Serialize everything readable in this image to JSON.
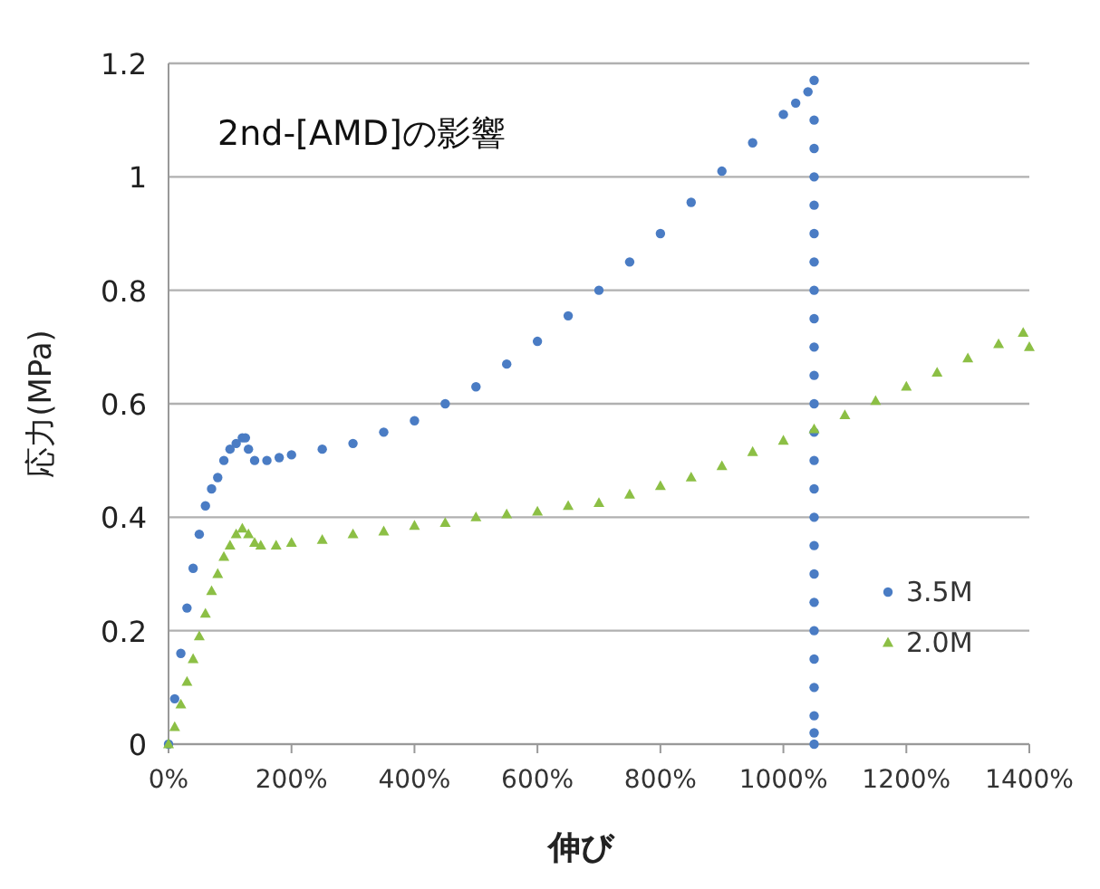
{
  "chart_data": {
    "type": "scatter",
    "title": "2nd-[AMD]の影響",
    "xlabel": "伸び",
    "ylabel": "応力(MPa)",
    "xlim": [
      0,
      1400
    ],
    "ylim": [
      0,
      1.2
    ],
    "xticks": [
      {
        "value": 0,
        "label": "0%"
      },
      {
        "value": 200,
        "label": "200%"
      },
      {
        "value": 400,
        "label": "400%"
      },
      {
        "value": 600,
        "label": "600%"
      },
      {
        "value": 800,
        "label": "800%"
      },
      {
        "value": 1000,
        "label": "1000%"
      },
      {
        "value": 1200,
        "label": "1200%"
      },
      {
        "value": 1400,
        "label": "1400%"
      }
    ],
    "yticks": [
      0,
      0.2,
      0.4,
      0.6,
      0.8,
      1,
      1.2
    ],
    "grid": "y",
    "legend": "right",
    "series": [
      {
        "name": "3.5M",
        "color": "#4a7cc4",
        "marker": "circle",
        "x": [
          0,
          10,
          20,
          30,
          40,
          50,
          60,
          70,
          80,
          90,
          100,
          110,
          120,
          125,
          130,
          140,
          160,
          180,
          200,
          250,
          300,
          350,
          400,
          450,
          500,
          550,
          600,
          650,
          700,
          750,
          800,
          850,
          900,
          950,
          1000,
          1020,
          1040,
          1050,
          1050,
          1050,
          1050,
          1050,
          1050,
          1050,
          1050,
          1050,
          1050,
          1050,
          1050,
          1050,
          1050,
          1050,
          1050,
          1050,
          1050,
          1050,
          1050,
          1050,
          1050,
          1050,
          1050,
          1050
        ],
        "values": [
          0,
          0.08,
          0.16,
          0.24,
          0.31,
          0.37,
          0.42,
          0.45,
          0.47,
          0.5,
          0.52,
          0.53,
          0.54,
          0.54,
          0.52,
          0.5,
          0.5,
          0.505,
          0.51,
          0.52,
          0.53,
          0.55,
          0.57,
          0.6,
          0.63,
          0.67,
          0.71,
          0.755,
          0.8,
          0.85,
          0.9,
          0.955,
          1.01,
          1.06,
          1.11,
          1.13,
          1.15,
          1.17,
          1.1,
          1.05,
          1,
          0.95,
          0.9,
          0.85,
          0.8,
          0.75,
          0.7,
          0.65,
          0.6,
          0.55,
          0.5,
          0.45,
          0.4,
          0.35,
          0.3,
          0.25,
          0.2,
          0.15,
          0.1,
          0.05,
          0.02,
          0
        ]
      },
      {
        "name": "2.0M",
        "color": "#8cbf45",
        "marker": "triangle",
        "x": [
          0,
          10,
          20,
          30,
          40,
          50,
          60,
          70,
          80,
          90,
          100,
          110,
          120,
          130,
          140,
          150,
          175,
          200,
          250,
          300,
          350,
          400,
          450,
          500,
          550,
          600,
          650,
          700,
          750,
          800,
          850,
          900,
          950,
          1000,
          1050,
          1100,
          1150,
          1200,
          1250,
          1300,
          1350,
          1390,
          1400
        ],
        "values": [
          0,
          0.03,
          0.07,
          0.11,
          0.15,
          0.19,
          0.23,
          0.27,
          0.3,
          0.33,
          0.35,
          0.37,
          0.38,
          0.37,
          0.355,
          0.35,
          0.35,
          0.355,
          0.36,
          0.37,
          0.375,
          0.385,
          0.39,
          0.4,
          0.405,
          0.41,
          0.42,
          0.425,
          0.44,
          0.455,
          0.47,
          0.49,
          0.515,
          0.535,
          0.555,
          0.58,
          0.605,
          0.63,
          0.655,
          0.68,
          0.705,
          0.725,
          0.7
        ]
      }
    ]
  }
}
